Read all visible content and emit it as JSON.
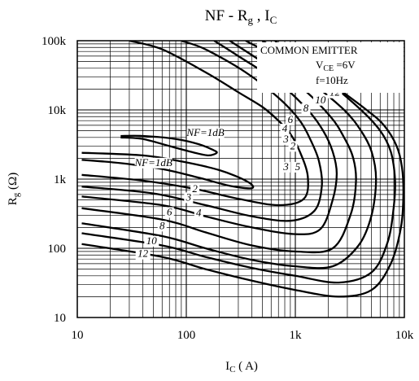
{
  "chart_data": {
    "type": "line",
    "title_main": "NF - R",
    "title_sub": "g",
    "title_mid": " , I",
    "title_sub2": "C",
    "xlabel_main": "I",
    "xlabel_sub": "C",
    "xlabel_unit": " ( A)",
    "ylabel_main": "R",
    "ylabel_sub": "g",
    "ylabel_unit": " (Ω)",
    "x_scale": "log",
    "y_scale": "log",
    "xlim": [
      10,
      10000
    ],
    "ylim": [
      10,
      100000
    ],
    "grid": true,
    "x_ticks": [
      {
        "value": 10,
        "label": "10"
      },
      {
        "value": 100,
        "label": "100"
      },
      {
        "value": 1000,
        "label": "1k"
      },
      {
        "value": 10000,
        "label": "10k"
      }
    ],
    "y_ticks": [
      {
        "value": 10,
        "label": "10"
      },
      {
        "value": 100,
        "label": "100"
      },
      {
        "value": 1000,
        "label": "1k"
      },
      {
        "value": 10000,
        "label": "10k"
      },
      {
        "value": 100000,
        "label": "100k"
      }
    ],
    "conditions": {
      "line1": "COMMON EMITTER",
      "line2_main": "V",
      "line2_sub": "CE",
      "line2_rest": " =6V",
      "line3": "f=10Hz"
    },
    "series": [
      {
        "name": "NF=1dB",
        "label": "NF=1dB",
        "points": [
          [
            25,
            4000
          ],
          [
            40,
            3800
          ],
          [
            70,
            3000
          ],
          [
            120,
            2400
          ],
          [
            160,
            2200
          ],
          [
            190,
            2400
          ],
          [
            175,
            2650
          ],
          [
            130,
            3200
          ],
          [
            80,
            3800
          ],
          [
            40,
            4200
          ],
          [
            25,
            4200
          ]
        ]
      },
      {
        "name": "NF=1dB",
        "label": "NF=1dB",
        "points": [
          [
            11,
            1900
          ],
          [
            25,
            1700
          ],
          [
            60,
            1400
          ],
          [
            130,
            1050
          ],
          [
            250,
            800
          ],
          [
            400,
            740
          ],
          [
            360,
            930
          ],
          [
            200,
            1350
          ],
          [
            90,
            1800
          ],
          [
            40,
            2200
          ],
          [
            11,
            2400
          ]
        ]
      },
      {
        "name": "2",
        "label": "2",
        "points": [
          [
            11,
            1150
          ],
          [
            40,
            950
          ],
          [
            120,
            720
          ],
          [
            300,
            520
          ],
          [
            700,
            420
          ],
          [
            1200,
            520
          ],
          [
            1300,
            1100
          ],
          [
            1100,
            2500
          ],
          [
            900,
            4500
          ],
          [
            700,
            7000
          ],
          [
            500,
            11000
          ],
          [
            300,
            18000
          ],
          [
            150,
            35000
          ],
          [
            60,
            75000
          ],
          [
            30,
            100000
          ]
        ]
      },
      {
        "name": "3",
        "label": "3",
        "points": [
          [
            11,
            780
          ],
          [
            50,
            620
          ],
          [
            150,
            420
          ],
          [
            400,
            290
          ],
          [
            900,
            250
          ],
          [
            1500,
            350
          ],
          [
            1750,
            800
          ],
          [
            1650,
            1800
          ],
          [
            1400,
            3500
          ],
          [
            1100,
            7000
          ],
          [
            700,
            15000
          ],
          [
            350,
            35000
          ],
          [
            150,
            75000
          ],
          [
            90,
            100000
          ]
        ]
      },
      {
        "name": "4",
        "label": "4",
        "points": [
          [
            11,
            560
          ],
          [
            60,
            420
          ],
          [
            150,
            290
          ],
          [
            400,
            200
          ],
          [
            1000,
            160
          ],
          [
            1700,
            190
          ],
          [
            2200,
            500
          ],
          [
            2400,
            1200
          ],
          [
            2200,
            2500
          ],
          [
            1800,
            5000
          ],
          [
            1300,
            10000
          ],
          [
            700,
            25000
          ],
          [
            300,
            60000
          ],
          [
            180,
            100000
          ]
        ]
      },
      {
        "name": "6",
        "label": "6",
        "points": [
          [
            11,
            380
          ],
          [
            60,
            260
          ],
          [
            150,
            170
          ],
          [
            400,
            110
          ],
          [
            1000,
            90
          ],
          [
            2200,
            100
          ],
          [
            3200,
            300
          ],
          [
            3600,
            900
          ],
          [
            3400,
            2000
          ],
          [
            2800,
            4000
          ],
          [
            2100,
            8000
          ],
          [
            1100,
            22000
          ],
          [
            450,
            55000
          ],
          [
            250,
            100000
          ]
        ]
      },
      {
        "name": "8",
        "label": "8",
        "points": [
          [
            11,
            230
          ],
          [
            60,
            150
          ],
          [
            150,
            100
          ],
          [
            400,
            68
          ],
          [
            1000,
            55
          ],
          [
            2200,
            55
          ],
          [
            3800,
            110
          ],
          [
            5000,
            300
          ],
          [
            5500,
            1000
          ],
          [
            5000,
            2500
          ],
          [
            4000,
            5000
          ],
          [
            2800,
            10000
          ],
          [
            1400,
            25000
          ],
          [
            700,
            55000
          ],
          [
            350,
            100000
          ]
        ]
      },
      {
        "name": "10",
        "label": "10",
        "points": [
          [
            11,
            165
          ],
          [
            60,
            110
          ],
          [
            150,
            75
          ],
          [
            400,
            52
          ],
          [
            1000,
            40
          ],
          [
            2500,
            32
          ],
          [
            5000,
            45
          ],
          [
            7000,
            120
          ],
          [
            8000,
            400
          ],
          [
            8200,
            1000
          ],
          [
            7500,
            2500
          ],
          [
            6000,
            5000
          ],
          [
            4000,
            10000
          ],
          [
            2000,
            25000
          ],
          [
            900,
            55000
          ],
          [
            500,
            100000
          ]
        ]
      },
      {
        "name": "12",
        "label": "12",
        "points": [
          [
            11,
            115
          ],
          [
            60,
            75
          ],
          [
            150,
            50
          ],
          [
            400,
            34
          ],
          [
            1000,
            25
          ],
          [
            2500,
            20
          ],
          [
            5000,
            25
          ],
          [
            7500,
            60
          ],
          [
            9300,
            200
          ],
          [
            9800,
            600
          ],
          [
            9500,
            1500
          ],
          [
            8500,
            3000
          ],
          [
            6500,
            6000
          ],
          [
            4500,
            10000
          ],
          [
            2500,
            20000
          ],
          [
            1200,
            45000
          ],
          [
            650,
            100000
          ]
        ]
      }
    ],
    "curve_labels": [
      {
        "text": "12",
        "x": 2300,
        "y": 16000
      },
      {
        "text": "10",
        "x": 1700,
        "y": 12500
      },
      {
        "text": "8",
        "x": 1250,
        "y": 9500
      },
      {
        "text": "6",
        "x": 900,
        "y": 6500
      },
      {
        "text": "4",
        "x": 800,
        "y": 4800
      },
      {
        "text": "3",
        "x": 820,
        "y": 3400
      },
      {
        "text": "2",
        "x": 950,
        "y": 2700
      },
      {
        "text": "3",
        "x": 820,
        "y": 1350
      },
      {
        "text": "5",
        "x": 1050,
        "y": 1350
      },
      {
        "text": "NF=1dB",
        "x": 150,
        "y": 4200
      },
      {
        "text": "NF=1dB",
        "x": 50,
        "y": 1550
      },
      {
        "text": "2",
        "x": 120,
        "y": 650
      },
      {
        "text": "3",
        "x": 105,
        "y": 490
      },
      {
        "text": "4",
        "x": 130,
        "y": 290
      },
      {
        "text": "6",
        "x": 70,
        "y": 300
      },
      {
        "text": "8",
        "x": 60,
        "y": 190
      },
      {
        "text": "10",
        "x": 48,
        "y": 115
      },
      {
        "text": "12",
        "x": 40,
        "y": 75
      }
    ]
  }
}
